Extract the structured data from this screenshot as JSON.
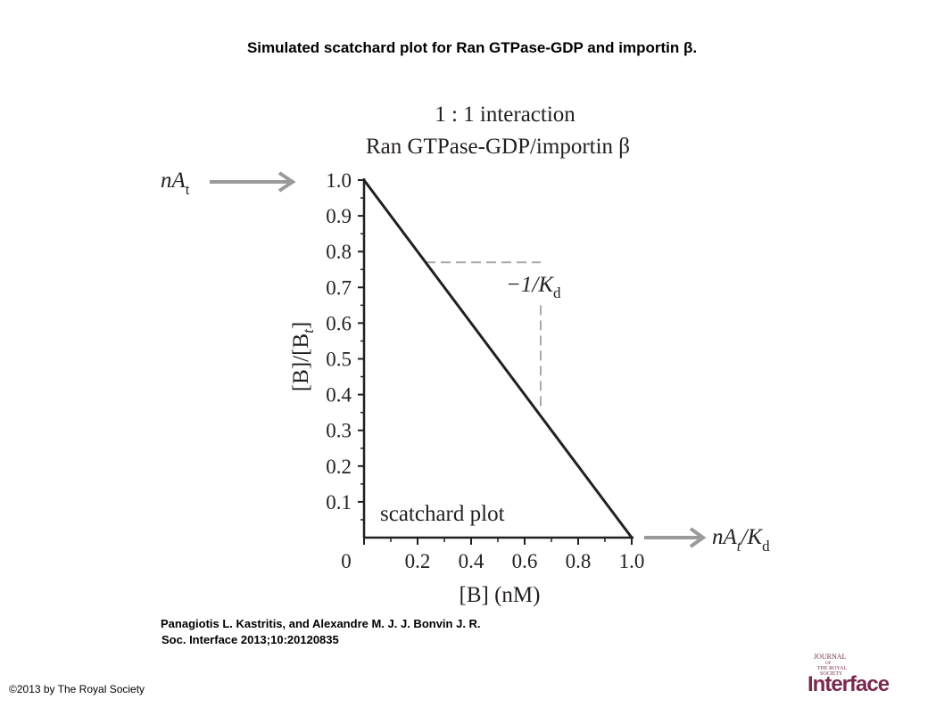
{
  "slide": {
    "title": "Simulated scatchard plot for Ran GTPase-GDP and importin β.",
    "citation_line1": "Panagiotis L. Kastritis, and Alexandre M. J. J. Bonvin J. R.",
    "citation_line2": "Soc. Interface 2013;10:20120835",
    "copyright": "©2013 by The Royal Society"
  },
  "logo": {
    "journal_text": "JOURNAL",
    "of_text": "OF",
    "society_text1": "THE ROYAL",
    "society_text2": "SOCIETY",
    "wordmark": "Interface",
    "color": "#7a2a4f"
  },
  "chart_data": {
    "type": "line",
    "title_line1": "1 : 1 interaction",
    "title_line2": "Ran GTPase-GDP/importin β",
    "xlabel": "[B] (nM)",
    "ylabel": "[B]/[B",
    "ylabel_sub": "t",
    "ylabel_close": "]",
    "xlim": [
      0,
      1.0
    ],
    "ylim": [
      0,
      1.0
    ],
    "xticks": [
      0,
      0.2,
      0.4,
      0.6,
      0.8,
      1.0
    ],
    "xtick_labels": [
      "0",
      "0.2",
      "0.4",
      "0.6",
      "0.8",
      "1.0"
    ],
    "yticks": [
      0.1,
      0.2,
      0.3,
      0.4,
      0.5,
      0.6,
      0.7,
      0.8,
      0.9,
      1.0
    ],
    "ytick_labels": [
      "0.1",
      "0.2",
      "0.3",
      "0.4",
      "0.5",
      "0.6",
      "0.7",
      "0.8",
      "0.9",
      "1.0"
    ],
    "series": [
      {
        "x": [
          0,
          1.0
        ],
        "y": [
          1.0,
          0
        ],
        "color": "#231f20"
      }
    ],
    "slope_guide": {
      "x_start": 0.23,
      "y_level": 0.77,
      "x_end": 0.66,
      "y_end": 0.36,
      "label": "−1/K",
      "label_sub": "d"
    },
    "annotations": {
      "inner_label": "scatchard plot",
      "y_arrow_label": "nA",
      "y_arrow_sub": "t",
      "x_arrow_label_a": "nA",
      "x_arrow_sub_t": "t",
      "x_arrow_label_b": "/K",
      "x_arrow_sub_d": "d"
    },
    "colors": {
      "line": "#231f20",
      "arrow": "#9a9a9c",
      "dash": "#a7a9ac"
    }
  }
}
